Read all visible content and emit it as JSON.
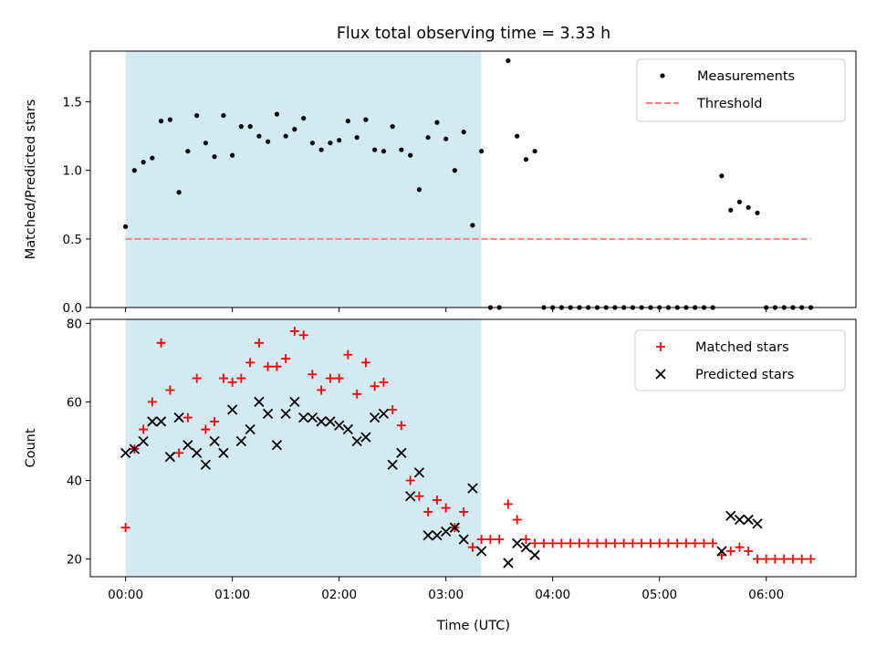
{
  "chart_data": {
    "type": "scatter",
    "title": "Flux total observing time = 3.33 h",
    "xlabel": "Time (UTC)",
    "x_unit": "hours",
    "xlim": [
      -0.33,
      6.84
    ],
    "xticks": [
      0,
      1,
      2,
      3,
      4,
      5,
      6
    ],
    "xtick_labels": [
      "00:00",
      "01:00",
      "02:00",
      "03:00",
      "04:00",
      "05:00",
      "06:00"
    ],
    "shaded_span": [
      0,
      3.33
    ],
    "shaded_color": "#add8e6",
    "panels": [
      {
        "ylabel": "Matched/Predicted stars",
        "ylim": [
          0,
          1.87
        ],
        "yticks": [
          0.0,
          0.5,
          1.0,
          1.5
        ],
        "ytick_labels": [
          "0.0",
          "0.5",
          "1.0",
          "1.5"
        ],
        "legend_position": "upper right",
        "series": [
          {
            "name": "Measurements",
            "marker": "dot",
            "color": "#000000",
            "x": [
              0,
              0.083,
              0.167,
              0.25,
              0.333,
              0.417,
              0.5,
              0.583,
              0.667,
              0.75,
              0.833,
              0.917,
              1.0,
              1.083,
              1.167,
              1.25,
              1.333,
              1.417,
              1.5,
              1.583,
              1.667,
              1.75,
              1.833,
              1.917,
              2.0,
              2.083,
              2.167,
              2.25,
              2.333,
              2.417,
              2.5,
              2.583,
              2.667,
              2.75,
              2.833,
              2.917,
              3.0,
              3.083,
              3.167,
              3.25,
              3.333,
              3.417,
              3.5,
              3.583,
              3.667,
              3.75,
              3.833,
              3.917,
              4.0,
              4.083,
              4.167,
              4.25,
              4.333,
              4.417,
              4.5,
              4.583,
              4.667,
              4.75,
              4.833,
              4.917,
              5.0,
              5.083,
              5.167,
              5.25,
              5.333,
              5.417,
              5.5,
              5.583,
              5.667,
              5.75,
              5.833,
              5.917,
              6.0,
              6.083,
              6.167,
              6.25,
              6.333,
              6.417
            ],
            "y": [
              0.59,
              1.0,
              1.06,
              1.09,
              1.36,
              1.37,
              0.84,
              1.14,
              1.4,
              1.2,
              1.1,
              1.4,
              1.11,
              1.32,
              1.32,
              1.25,
              1.21,
              1.41,
              1.25,
              1.3,
              1.38,
              1.2,
              1.15,
              1.2,
              1.22,
              1.36,
              1.24,
              1.37,
              1.15,
              1.14,
              1.32,
              1.15,
              1.11,
              0.86,
              1.24,
              1.35,
              1.23,
              1.0,
              1.28,
              0.6,
              1.14,
              0.0,
              0.0,
              1.8,
              1.25,
              1.08,
              1.14,
              0.0,
              0.0,
              0.0,
              0.0,
              0.0,
              0.0,
              0.0,
              0.0,
              0.0,
              0.0,
              0.0,
              0.0,
              0.0,
              0.0,
              0.0,
              0.0,
              0.0,
              0.0,
              0.0,
              0.0,
              0.96,
              0.71,
              0.77,
              0.73,
              0.69,
              0.0,
              0.0,
              0.0,
              0.0,
              0.0,
              0.0
            ]
          },
          {
            "name": "Threshold",
            "line": "dashed",
            "color": "#ff7f7f",
            "x": [
              0,
              6.417
            ],
            "y": [
              0.5,
              0.5
            ]
          }
        ]
      },
      {
        "ylabel": "Count",
        "ylim": [
          15.5,
          81
        ],
        "yticks": [
          20,
          40,
          60,
          80
        ],
        "ytick_labels": [
          "20",
          "40",
          "60",
          "80"
        ],
        "legend_position": "upper right",
        "series": [
          {
            "name": "Matched stars",
            "marker": "plus",
            "color": "#ff0000",
            "x": [
              0,
              0.083,
              0.167,
              0.25,
              0.333,
              0.417,
              0.5,
              0.583,
              0.667,
              0.75,
              0.833,
              0.917,
              1.0,
              1.083,
              1.167,
              1.25,
              1.333,
              1.417,
              1.5,
              1.583,
              1.667,
              1.75,
              1.833,
              1.917,
              2.0,
              2.083,
              2.167,
              2.25,
              2.333,
              2.417,
              2.5,
              2.583,
              2.667,
              2.75,
              2.833,
              2.917,
              3.0,
              3.083,
              3.167,
              3.25,
              3.333,
              3.417,
              3.5,
              3.583,
              3.667,
              3.75,
              3.833,
              3.917,
              4.0,
              4.083,
              4.167,
              4.25,
              4.333,
              4.417,
              4.5,
              4.583,
              4.667,
              4.75,
              4.833,
              4.917,
              5.0,
              5.083,
              5.167,
              5.25,
              5.333,
              5.417,
              5.5,
              5.583,
              5.667,
              5.75,
              5.833,
              5.917,
              6.0,
              6.083,
              6.167,
              6.25,
              6.333,
              6.417
            ],
            "y": [
              28,
              48,
              53,
              60,
              75,
              63,
              47,
              56,
              66,
              53,
              55,
              66,
              65,
              66,
              70,
              75,
              69,
              69,
              71,
              78,
              77,
              67,
              63,
              66,
              66,
              72,
              62,
              70,
              64,
              65,
              58,
              54,
              40,
              36,
              32,
              35,
              33,
              28,
              32,
              23,
              25,
              25,
              25,
              34,
              30,
              25,
              24,
              24,
              24,
              24,
              24,
              24,
              24,
              24,
              24,
              24,
              24,
              24,
              24,
              24,
              24,
              24,
              24,
              24,
              24,
              24,
              24,
              21,
              22,
              23,
              22,
              20,
              20,
              20,
              20,
              20,
              20,
              20
            ]
          },
          {
            "name": "Predicted stars",
            "marker": "x",
            "color": "#000000",
            "x": [
              0,
              0.083,
              0.167,
              0.25,
              0.333,
              0.417,
              0.5,
              0.583,
              0.667,
              0.75,
              0.833,
              0.917,
              1.0,
              1.083,
              1.167,
              1.25,
              1.333,
              1.417,
              1.5,
              1.583,
              1.667,
              1.75,
              1.833,
              1.917,
              2.0,
              2.083,
              2.167,
              2.25,
              2.333,
              2.417,
              2.5,
              2.583,
              2.667,
              2.75,
              2.833,
              2.917,
              3.0,
              3.083,
              3.167,
              3.25,
              3.333,
              3.583,
              3.667,
              3.75,
              3.833,
              5.583,
              5.667,
              5.75,
              5.833,
              5.917
            ],
            "y": [
              47,
              48,
              50,
              55,
              55,
              46,
              56,
              49,
              47,
              44,
              50,
              47,
              58,
              50,
              53,
              60,
              57,
              49,
              57,
              60,
              56,
              56,
              55,
              55,
              54,
              53,
              50,
              51,
              56,
              57,
              44,
              47,
              36,
              42,
              26,
              26,
              27,
              28,
              25,
              38,
              22,
              19,
              24,
              23,
              21,
              22,
              31,
              30,
              30,
              29
            ]
          }
        ]
      }
    ]
  }
}
